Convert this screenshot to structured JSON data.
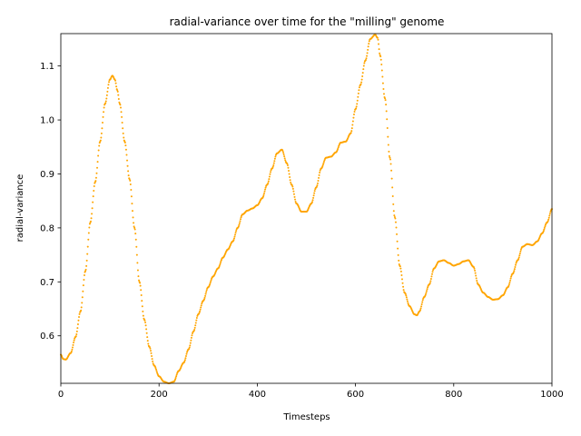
{
  "chart_data": {
    "type": "scatter",
    "title": "radial-variance over time for the \"milling\" genome",
    "xlabel": "Timesteps",
    "ylabel": "radial-variance",
    "xlim": [
      0,
      1000
    ],
    "ylim": [
      0.512,
      1.16
    ],
    "xticks": [
      0,
      200,
      400,
      600,
      800,
      1000
    ],
    "yticks": [
      0.6,
      0.7,
      0.8,
      0.9,
      1.0,
      1.1
    ],
    "ytick_labels": [
      "0.6",
      "0.7",
      "0.8",
      "0.9",
      "1.0",
      "1.1"
    ],
    "grid": false,
    "legend": "none",
    "marker_color": "#ffa500",
    "series": [
      {
        "x": [
          0,
          5,
          10,
          20,
          30,
          40,
          50,
          60,
          70,
          80,
          90,
          100,
          105,
          110,
          115,
          120,
          130,
          140,
          150,
          160,
          170,
          180,
          190,
          200,
          210,
          220,
          230,
          240,
          250,
          260,
          270,
          280,
          290,
          300,
          310,
          320,
          330,
          340,
          350,
          360,
          370,
          380,
          390,
          400,
          410,
          420,
          430,
          440,
          450,
          460,
          470,
          480,
          490,
          500,
          510,
          520,
          530,
          540,
          550,
          560,
          570,
          580,
          590,
          600,
          610,
          620,
          630,
          640,
          645,
          650,
          660,
          670,
          680,
          690,
          700,
          710,
          720,
          725,
          730,
          740,
          750,
          760,
          770,
          780,
          790,
          800,
          810,
          820,
          830,
          840,
          850,
          860,
          870,
          880,
          890,
          900,
          910,
          920,
          930,
          940,
          950,
          960,
          970,
          980,
          990,
          1000
        ],
        "y": [
          0.565,
          0.557,
          0.556,
          0.568,
          0.598,
          0.645,
          0.72,
          0.81,
          0.885,
          0.96,
          1.03,
          1.075,
          1.082,
          1.075,
          1.055,
          1.03,
          0.96,
          0.89,
          0.8,
          0.7,
          0.63,
          0.58,
          0.545,
          0.525,
          0.515,
          0.512,
          0.515,
          0.535,
          0.55,
          0.575,
          0.608,
          0.64,
          0.665,
          0.69,
          0.71,
          0.725,
          0.745,
          0.76,
          0.775,
          0.8,
          0.825,
          0.832,
          0.836,
          0.842,
          0.855,
          0.88,
          0.91,
          0.938,
          0.945,
          0.92,
          0.88,
          0.845,
          0.83,
          0.83,
          0.845,
          0.875,
          0.91,
          0.93,
          0.932,
          0.94,
          0.958,
          0.96,
          0.975,
          1.02,
          1.065,
          1.11,
          1.15,
          1.158,
          1.152,
          1.12,
          1.04,
          0.93,
          0.82,
          0.73,
          0.68,
          0.655,
          0.64,
          0.638,
          0.645,
          0.672,
          0.695,
          0.725,
          0.738,
          0.74,
          0.735,
          0.73,
          0.733,
          0.738,
          0.74,
          0.728,
          0.695,
          0.68,
          0.672,
          0.667,
          0.668,
          0.675,
          0.69,
          0.715,
          0.74,
          0.765,
          0.77,
          0.768,
          0.775,
          0.79,
          0.81,
          0.835
        ]
      }
    ]
  }
}
